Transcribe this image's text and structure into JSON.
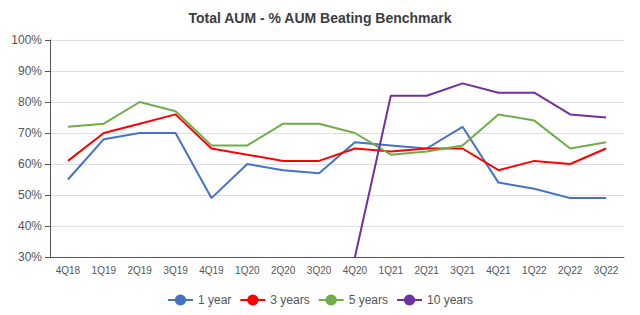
{
  "chart_data": {
    "type": "line",
    "title": "Total AUM - % AUM Beating Benchmark",
    "categories": [
      "4Q18",
      "1Q19",
      "2Q19",
      "3Q19",
      "4Q19",
      "1Q20",
      "2Q20",
      "3Q20",
      "4Q20",
      "1Q21",
      "2Q21",
      "3Q21",
      "4Q21",
      "1Q22",
      "2Q22",
      "3Q22"
    ],
    "series": [
      {
        "name": "1 year",
        "color": "#4472C4",
        "values": [
          0.55,
          0.68,
          0.7,
          0.7,
          0.49,
          0.6,
          0.58,
          0.57,
          0.67,
          0.66,
          0.65,
          0.72,
          0.54,
          0.52,
          0.49,
          0.49
        ]
      },
      {
        "name": "3 years",
        "color": "#FF0000",
        "values": [
          0.61,
          0.7,
          0.73,
          0.76,
          0.65,
          0.63,
          0.61,
          0.61,
          0.65,
          0.64,
          0.65,
          0.65,
          0.58,
          0.61,
          0.6,
          0.65
        ]
      },
      {
        "name": "5 years",
        "color": "#70AD47",
        "values": [
          0.72,
          0.73,
          0.8,
          0.77,
          0.66,
          0.66,
          0.73,
          0.73,
          0.7,
          0.63,
          0.64,
          0.66,
          0.76,
          0.74,
          0.65,
          0.67
        ]
      },
      {
        "name": "10 years",
        "color": "#7030A0",
        "values": [
          null,
          null,
          null,
          null,
          null,
          null,
          null,
          null,
          0.3,
          0.82,
          0.82,
          0.86,
          0.83,
          0.83,
          0.76,
          0.75
        ]
      }
    ],
    "ylim": [
      0.3,
      1.0
    ],
    "yticks": [
      {
        "value": 0.3,
        "label": "30%"
      },
      {
        "value": 0.4,
        "label": "40%"
      },
      {
        "value": 0.5,
        "label": "50%"
      },
      {
        "value": 0.6,
        "label": "60%"
      },
      {
        "value": 0.7,
        "label": "70%"
      },
      {
        "value": 0.8,
        "label": "80%"
      },
      {
        "value": 0.9,
        "label": "90%"
      },
      {
        "value": 1.0,
        "label": "100%"
      }
    ],
    "grid": true,
    "legend": "bottom"
  }
}
